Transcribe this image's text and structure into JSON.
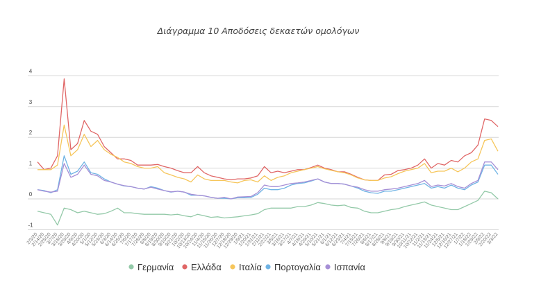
{
  "chart_data": {
    "type": "line",
    "title": "Διάγραμμα 10 Αποδόσεις δεκαετών ομολόγων",
    "xlabel": "",
    "ylabel": "",
    "ylim": [
      -1,
      4
    ],
    "yticks": [
      "-1",
      "0",
      "1",
      "2",
      "3",
      "4"
    ],
    "grid": true,
    "legend_position": "bottom",
    "x": [
      "2/3/20",
      "2/14/20",
      "2/25/20",
      "3/7/20",
      "3/18/20",
      "3/29/20",
      "4/9/20",
      "4/20/20",
      "5/1/20",
      "5/12/20",
      "5/23/20",
      "6/3/20",
      "6/14/20",
      "6/25/20",
      "7/6/20",
      "7/17/20",
      "7/28/20",
      "8/8/20",
      "8/19/20",
      "8/30/20",
      "9/10/20",
      "9/21/20",
      "10/2/20",
      "10/13/20",
      "10/24/20",
      "11/4/20",
      "11/15/20",
      "11/26/20",
      "12/7/20",
      "12/18/20",
      "12/29/20",
      "1/9/21",
      "1/20/21",
      "1/31/21",
      "2/11/21",
      "2/22/21",
      "3/5/21",
      "3/16/21",
      "3/27/21",
      "4/7/21",
      "4/18/21",
      "4/29/21",
      "5/10/21",
      "5/21/21",
      "6/1/21",
      "6/12/21",
      "6/23/21",
      "7/4/21",
      "7/15/21",
      "7/26/21",
      "8/6/21",
      "8/17/21",
      "8/28/21",
      "9/8/21",
      "9/19/21",
      "9/30/21",
      "10/11/21",
      "10/22/21",
      "11/2/21",
      "11/13/21",
      "11/24/21",
      "12/5/21",
      "12/16/21",
      "12/27/21",
      "1/7/22",
      "1/18/22",
      "1/29/22",
      "2/9/22",
      "2/20/22",
      "3/3/22"
    ],
    "series": [
      {
        "name": "Γερμανία",
        "color": "#93c9a8",
        "values": [
          -0.4,
          -0.45,
          -0.5,
          -0.85,
          -0.3,
          -0.35,
          -0.45,
          -0.4,
          -0.45,
          -0.5,
          -0.48,
          -0.4,
          -0.3,
          -0.45,
          -0.45,
          -0.48,
          -0.5,
          -0.5,
          -0.5,
          -0.5,
          -0.52,
          -0.5,
          -0.55,
          -0.58,
          -0.5,
          -0.55,
          -0.6,
          -0.58,
          -0.62,
          -0.6,
          -0.58,
          -0.55,
          -0.52,
          -0.48,
          -0.35,
          -0.3,
          -0.3,
          -0.3,
          -0.3,
          -0.25,
          -0.25,
          -0.2,
          -0.12,
          -0.15,
          -0.2,
          -0.22,
          -0.2,
          -0.28,
          -0.3,
          -0.4,
          -0.45,
          -0.45,
          -0.4,
          -0.35,
          -0.32,
          -0.25,
          -0.2,
          -0.15,
          -0.1,
          -0.2,
          -0.25,
          -0.3,
          -0.35,
          -0.35,
          -0.25,
          -0.15,
          -0.05,
          0.25,
          0.2,
          0.0
        ]
      },
      {
        "name": "Ελλάδα",
        "color": "#e06666",
        "values": [
          1.2,
          0.95,
          1.0,
          1.4,
          3.9,
          1.6,
          1.8,
          2.55,
          2.2,
          2.1,
          1.7,
          1.5,
          1.3,
          1.3,
          1.25,
          1.1,
          1.1,
          1.1,
          1.12,
          1.05,
          1.0,
          0.92,
          0.85,
          0.85,
          1.05,
          0.85,
          0.75,
          0.7,
          0.65,
          0.62,
          0.65,
          0.65,
          0.68,
          0.75,
          1.05,
          0.85,
          0.9,
          0.85,
          0.9,
          0.95,
          0.95,
          1.02,
          1.1,
          1.0,
          0.95,
          0.88,
          0.88,
          0.8,
          0.7,
          0.62,
          0.6,
          0.6,
          0.78,
          0.8,
          0.92,
          0.95,
          1.0,
          1.1,
          1.3,
          1.0,
          1.15,
          1.1,
          1.25,
          1.2,
          1.4,
          1.5,
          1.75,
          2.6,
          2.55,
          2.35
        ]
      },
      {
        "name": "Ιταλία",
        "color": "#f6c65b",
        "values": [
          0.95,
          0.95,
          0.95,
          1.1,
          2.4,
          1.4,
          1.6,
          2.1,
          1.7,
          1.9,
          1.6,
          1.45,
          1.35,
          1.2,
          1.15,
          1.05,
          1.0,
          1.0,
          1.05,
          0.85,
          0.78,
          0.7,
          0.65,
          0.55,
          0.78,
          0.65,
          0.6,
          0.6,
          0.6,
          0.55,
          0.52,
          0.6,
          0.62,
          0.55,
          0.75,
          0.6,
          0.7,
          0.75,
          0.85,
          0.9,
          0.95,
          1.0,
          1.05,
          0.98,
          0.93,
          0.88,
          0.85,
          0.78,
          0.68,
          0.62,
          0.6,
          0.6,
          0.68,
          0.72,
          0.82,
          0.9,
          0.95,
          1.0,
          1.15,
          0.85,
          0.9,
          0.9,
          1.0,
          0.88,
          1.0,
          1.2,
          1.3,
          1.9,
          1.95,
          1.55
        ]
      },
      {
        "name": "Πορτογαλία",
        "color": "#6fb3e4",
        "values": [
          0.3,
          0.27,
          0.2,
          0.3,
          1.4,
          0.8,
          0.9,
          1.2,
          0.85,
          0.8,
          0.65,
          0.55,
          0.48,
          0.42,
          0.4,
          0.35,
          0.32,
          0.4,
          0.35,
          0.27,
          0.22,
          0.25,
          0.22,
          0.12,
          0.12,
          0.1,
          0.05,
          0.02,
          0.02,
          0.0,
          0.04,
          0.04,
          0.05,
          0.15,
          0.35,
          0.3,
          0.3,
          0.35,
          0.45,
          0.5,
          0.52,
          0.58,
          0.65,
          0.55,
          0.5,
          0.5,
          0.48,
          0.42,
          0.35,
          0.25,
          0.2,
          0.18,
          0.25,
          0.25,
          0.3,
          0.35,
          0.4,
          0.45,
          0.5,
          0.35,
          0.4,
          0.35,
          0.45,
          0.35,
          0.3,
          0.45,
          0.55,
          1.1,
          1.1,
          0.8
        ]
      },
      {
        "name": "Ισπανία",
        "color": "#a68fd6",
        "values": [
          0.3,
          0.25,
          0.22,
          0.25,
          1.15,
          0.7,
          0.8,
          1.1,
          0.8,
          0.75,
          0.6,
          0.55,
          0.48,
          0.43,
          0.4,
          0.35,
          0.32,
          0.38,
          0.32,
          0.27,
          0.23,
          0.25,
          0.22,
          0.15,
          0.12,
          0.1,
          0.05,
          0.02,
          0.05,
          0.0,
          0.06,
          0.07,
          0.08,
          0.2,
          0.45,
          0.4,
          0.4,
          0.45,
          0.5,
          0.52,
          0.55,
          0.6,
          0.65,
          0.55,
          0.5,
          0.5,
          0.48,
          0.42,
          0.38,
          0.3,
          0.25,
          0.25,
          0.3,
          0.32,
          0.35,
          0.4,
          0.45,
          0.5,
          0.6,
          0.4,
          0.45,
          0.42,
          0.5,
          0.4,
          0.35,
          0.5,
          0.6,
          1.2,
          1.2,
          0.95
        ]
      }
    ]
  }
}
